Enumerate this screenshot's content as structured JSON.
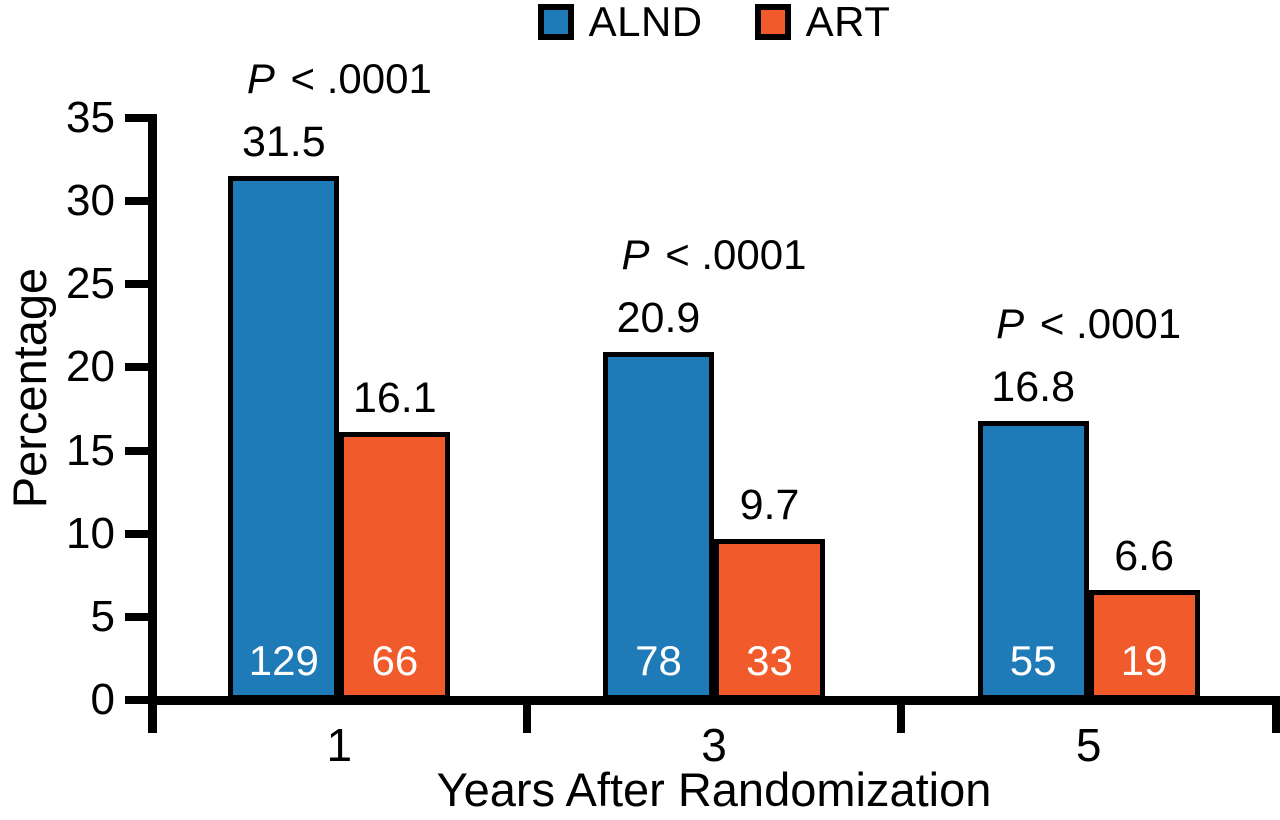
{
  "legend": [
    {
      "label": "ALND",
      "color": "#1F7AB8"
    },
    {
      "label": "ART",
      "color": "#F15A2B"
    }
  ],
  "chart_data": {
    "type": "bar",
    "categories": [
      "1",
      "3",
      "5"
    ],
    "series": [
      {
        "name": "ALND",
        "color": "#1F7AB8",
        "values": [
          31.5,
          20.9,
          16.8
        ],
        "counts": [
          129,
          78,
          55
        ]
      },
      {
        "name": "ART",
        "color": "#F15A2B",
        "values": [
          16.1,
          9.7,
          6.6
        ],
        "counts": [
          66,
          33,
          19
        ]
      }
    ],
    "group_annotations": [
      {
        "italic": "P",
        "rest": "< .0001"
      },
      {
        "italic": "P",
        "rest": "< .0001"
      },
      {
        "italic": "P",
        "rest": "< .0001"
      }
    ],
    "title": "",
    "xlabel": "Years After Randomization",
    "ylabel": "Percentage",
    "ylim": [
      0,
      35
    ],
    "yticks": [
      0,
      5,
      10,
      15,
      20,
      25,
      30,
      35
    ],
    "legend_position": "top",
    "grid": false,
    "bar_outline_color": "#000000",
    "axis_color": "#000000",
    "count_label_color": "#FFFFFF"
  }
}
